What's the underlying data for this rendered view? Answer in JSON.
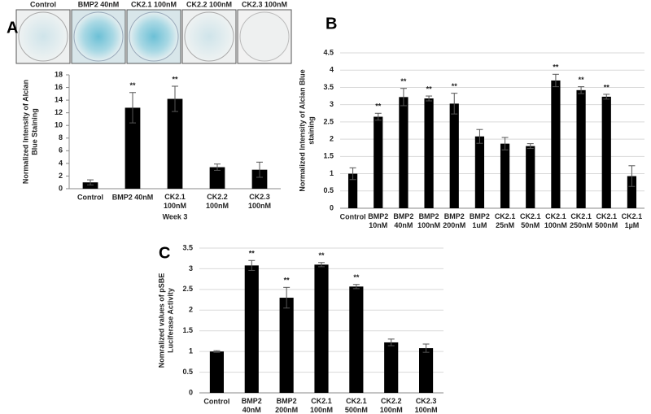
{
  "chart_data": [
    {
      "type": "bar",
      "panel": "A",
      "image_labels": [
        "Control",
        "BMP2 40nM",
        "CK2.1 100nM",
        "CK2.2 100nM",
        "CK2.3 100nM"
      ],
      "ylabel": [
        "Normalized Intensity of Alcian",
        "Blue Staining"
      ],
      "xlabel": "Week 3",
      "categories": [
        "Control",
        "BMP2 40nM",
        [
          "CK2.1",
          "100nM"
        ],
        [
          "CK2.2",
          "100nM"
        ],
        [
          "CK2.3",
          "100nM"
        ]
      ],
      "values": [
        1.0,
        12.8,
        14.2,
        3.4,
        3.0
      ],
      "errors": [
        0.4,
        2.4,
        2.0,
        0.5,
        1.2
      ],
      "significance": [
        null,
        "**",
        "**",
        null,
        null
      ],
      "color": "#000000",
      "ylim": [
        0,
        18
      ],
      "yticks": [
        0,
        2,
        4,
        6,
        8,
        10,
        12,
        14,
        16,
        18
      ],
      "grid": false
    },
    {
      "type": "bar",
      "panel": "B",
      "ylabel": [
        "Normalized Intensity of Alcian Blue",
        "staining"
      ],
      "categories": [
        "Control",
        [
          "BMP2",
          "10nM"
        ],
        [
          "BMP2",
          "40nM"
        ],
        [
          "BMP2",
          "100nM"
        ],
        [
          "BMP2",
          "200nM"
        ],
        [
          "BMP2",
          "1uM"
        ],
        [
          "CK2.1",
          "25nM"
        ],
        [
          "CK2.1",
          "50nM"
        ],
        [
          "CK2.1",
          "100nM"
        ],
        [
          "CK2.1",
          "250nM"
        ],
        [
          "CK2.1",
          "500nM"
        ],
        [
          "CK2.1",
          "1µM"
        ]
      ],
      "values": [
        1.0,
        2.65,
        3.22,
        3.18,
        3.03,
        2.08,
        1.87,
        1.8,
        3.7,
        3.42,
        3.23,
        0.93
      ],
      "errors": [
        0.17,
        0.1,
        0.25,
        0.07,
        0.3,
        0.2,
        0.18,
        0.07,
        0.18,
        0.1,
        0.07,
        0.3
      ],
      "significance": [
        null,
        "**",
        "**",
        "**",
        "**",
        null,
        null,
        null,
        "**",
        "**",
        "**",
        null
      ],
      "color": "#000000",
      "ylim": [
        0,
        4.5
      ],
      "yticks": [
        0,
        0.5,
        1,
        1.5,
        2,
        2.5,
        3,
        3.5,
        4,
        4.5
      ],
      "grid": true
    },
    {
      "type": "bar",
      "panel": "C",
      "ylabel": [
        "Nomralized values of pSBE",
        "Luciferase Activity"
      ],
      "categories": [
        "Control",
        [
          "BMP2",
          "40nM"
        ],
        [
          "BMP2",
          "200nM"
        ],
        [
          "CK2.1",
          "100nM"
        ],
        [
          "CK2.1",
          "500nM"
        ],
        [
          "CK2.2",
          "100nM"
        ],
        [
          "CK2.3",
          "100nM"
        ]
      ],
      "values": [
        1.0,
        3.08,
        2.3,
        3.1,
        2.57,
        1.22,
        1.08
      ],
      "errors": [
        0.02,
        0.12,
        0.25,
        0.05,
        0.05,
        0.08,
        0.1
      ],
      "significance": [
        null,
        "**",
        "**",
        "**",
        "**",
        null,
        null
      ],
      "color": "#000000",
      "ylim": [
        0,
        3.5
      ],
      "yticks": [
        0,
        0.5,
        1,
        1.5,
        2,
        2.5,
        3,
        3.5
      ],
      "grid": true
    }
  ]
}
